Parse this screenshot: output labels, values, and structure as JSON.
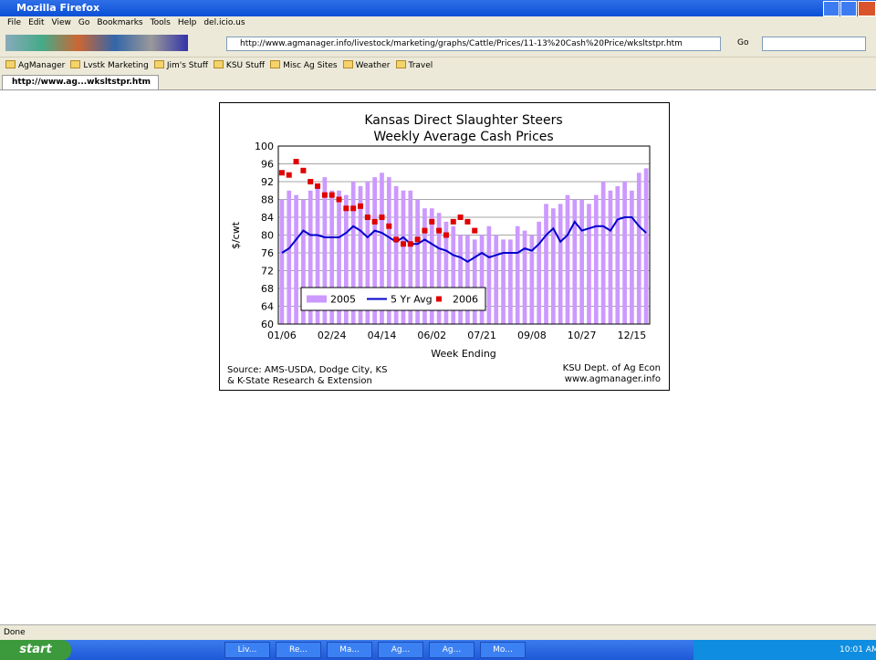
{
  "window": {
    "title": "Mozilla Firefox"
  },
  "menu": [
    "File",
    "Edit",
    "View",
    "Go",
    "Bookmarks",
    "Tools",
    "Help",
    "del.icio.us"
  ],
  "address": "http://www.agmanager.info/livestock/marketing/graphs/Cattle/Prices/11-13%20Cash%20Price/wksltstpr.htm",
  "go": "Go",
  "bookmarks": [
    "AgManager",
    "Lvstk Marketing",
    "Jim's Stuff",
    "KSU Stuff",
    "Misc Ag Sites",
    "Weather",
    "Travel"
  ],
  "tab": "http://www.ag...wksltstpr.htm",
  "status": "Done",
  "taskbar": {
    "start": "start",
    "tasks": [
      "Liv...",
      "Re...",
      "Ma...",
      "Ag...",
      "Ag...",
      "Mo..."
    ],
    "clock": "10:01 AM"
  },
  "chart_data": {
    "type": "bar",
    "title": "Kansas Direct Slaughter Steers",
    "subtitle": "Weekly Average Cash Prices",
    "ylabel": "$/cwt",
    "xlabel": "Week Ending",
    "annotations": [
      "Source:  AMS-USDA, Dodge City, KS",
      "& K-State Research & Extension",
      "KSU Dept. of Ag Econ",
      "www.agmanager.info"
    ],
    "categories": [
      "01/06",
      null,
      null,
      null,
      null,
      null,
      null,
      "02/24",
      null,
      null,
      null,
      null,
      null,
      null,
      "04/14",
      null,
      null,
      null,
      null,
      null,
      null,
      "06/02",
      null,
      null,
      null,
      null,
      null,
      null,
      "07/21",
      null,
      null,
      null,
      null,
      null,
      null,
      "09/08",
      null,
      null,
      null,
      null,
      null,
      null,
      "10/27",
      null,
      null,
      null,
      null,
      null,
      null,
      "12/15",
      null,
      null
    ],
    "ylim": [
      60,
      100
    ],
    "yticks": [
      60,
      64,
      68,
      72,
      76,
      80,
      84,
      88,
      92,
      96,
      100
    ],
    "grid": true,
    "series": [
      {
        "name": "2005",
        "type": "bar",
        "color": "#cc99ff",
        "values": [
          88,
          90,
          89,
          88,
          90,
          91,
          93,
          90,
          90,
          89,
          92,
          91,
          92,
          93,
          94,
          93,
          91,
          90,
          90,
          88,
          86,
          86,
          85,
          83,
          82,
          80,
          80,
          79,
          80,
          82,
          80,
          79,
          79,
          82,
          81,
          80,
          83,
          87,
          86,
          87,
          89,
          88,
          88,
          87,
          89,
          92,
          90,
          91,
          92,
          90,
          94,
          95
        ]
      },
      {
        "name": "5 Yr Avg",
        "type": "line",
        "color": "#0000cc",
        "values": [
          76,
          77,
          79,
          81,
          80,
          80,
          79.5,
          79.5,
          79.5,
          80.5,
          82,
          81,
          79.5,
          81,
          80.5,
          79.5,
          78.5,
          79.5,
          78,
          78,
          79,
          78,
          77,
          76.5,
          75.5,
          75,
          74,
          75,
          76,
          75,
          75.5,
          76,
          76,
          76,
          77,
          76.5,
          78,
          80,
          81.5,
          78.5,
          80,
          83,
          81,
          81.5,
          82,
          82,
          81,
          83.5,
          84,
          84,
          82,
          80.5
        ]
      },
      {
        "name": "2006",
        "type": "scatter",
        "color": "#e00000",
        "values": [
          94,
          93.5,
          96.5,
          94.5,
          92,
          91,
          89,
          89,
          88,
          86,
          86,
          86.5,
          84,
          83,
          84,
          82,
          79,
          78,
          78,
          79,
          81,
          83,
          81,
          80,
          83,
          84,
          83,
          81,
          null,
          null,
          null,
          null,
          null,
          null,
          null,
          null,
          null,
          null,
          null,
          null,
          null,
          null,
          null,
          null,
          null,
          null,
          null,
          null,
          null,
          null,
          null,
          null
        ]
      }
    ]
  }
}
